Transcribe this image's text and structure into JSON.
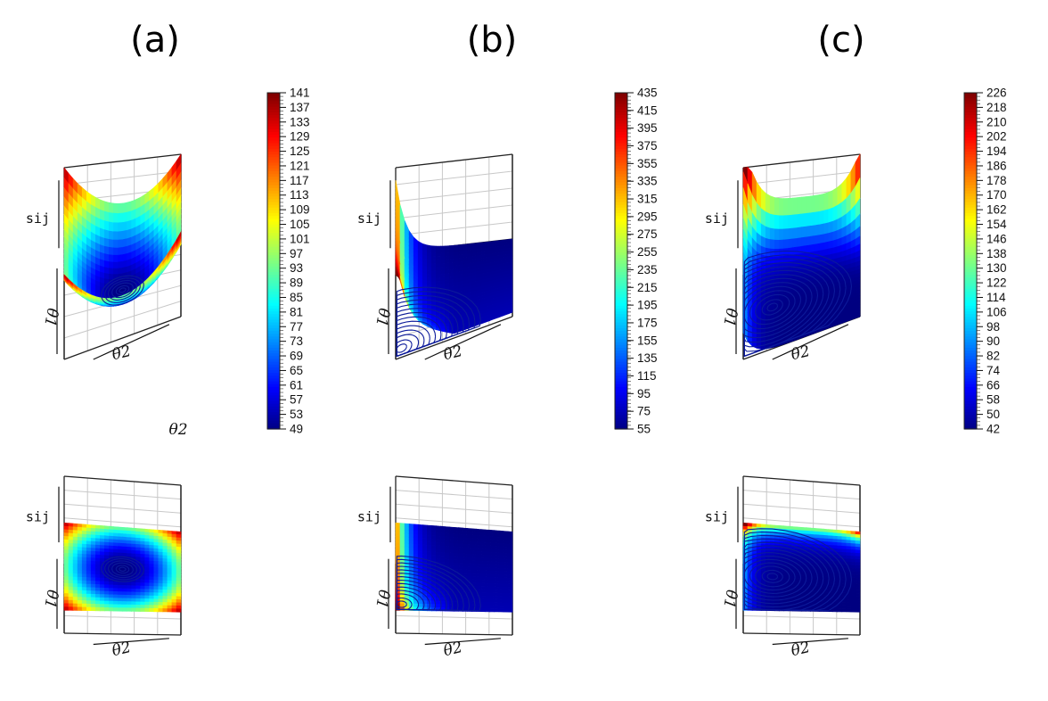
{
  "panels": [
    {
      "label": "(a)",
      "surface": "bowl",
      "axes": {
        "x": "θ2",
        "y": "θ1",
        "z": "sij"
      },
      "colorbar": {
        "min": 49,
        "max": 141,
        "ticks": [
          141,
          137,
          133,
          129,
          125,
          121,
          117,
          113,
          109,
          105,
          101,
          97,
          93,
          89,
          85,
          81,
          77,
          73,
          69,
          65,
          61,
          57,
          53,
          49
        ],
        "colormap": "jet"
      },
      "contour_center": [
        0.5,
        0.5
      ],
      "stray_label": "θ2"
    },
    {
      "label": "(b)",
      "surface": "valley",
      "axes": {
        "x": "θ2",
        "y": "θ1",
        "z": "sij"
      },
      "colorbar": {
        "min": 55,
        "max": 435,
        "ticks": [
          435,
          415,
          395,
          375,
          355,
          335,
          315,
          295,
          275,
          255,
          235,
          215,
          195,
          175,
          155,
          135,
          115,
          95,
          75,
          55
        ],
        "colormap": "jet"
      },
      "contour_center": [
        0.05,
        0.93
      ]
    },
    {
      "label": "(c)",
      "surface": "trough",
      "axes": {
        "x": "θ2",
        "y": "θ1",
        "z": "sij"
      },
      "colorbar": {
        "min": 42,
        "max": 226,
        "ticks": [
          226,
          218,
          210,
          202,
          194,
          186,
          178,
          170,
          162,
          154,
          146,
          138,
          130,
          122,
          114,
          106,
          98,
          90,
          82,
          74,
          66,
          58,
          50,
          42
        ],
        "colormap": "jet"
      },
      "contour_center": [
        0.25,
        0.6
      ]
    }
  ],
  "chart_data": [
    {
      "type": "heatmap",
      "title": "(a)",
      "xlabel": "θ2",
      "ylabel": "θ1",
      "zlabel": "sij",
      "zlim": [
        49,
        141
      ],
      "colormap": "jet"
    },
    {
      "type": "heatmap",
      "title": "(b)",
      "xlabel": "θ2",
      "ylabel": "θ1",
      "zlabel": "sij",
      "zlim": [
        55,
        435
      ],
      "colormap": "jet"
    },
    {
      "type": "heatmap",
      "title": "(c)",
      "xlabel": "θ2",
      "ylabel": "θ1",
      "zlabel": "sij",
      "zlim": [
        42,
        226
      ],
      "colormap": "jet"
    }
  ]
}
